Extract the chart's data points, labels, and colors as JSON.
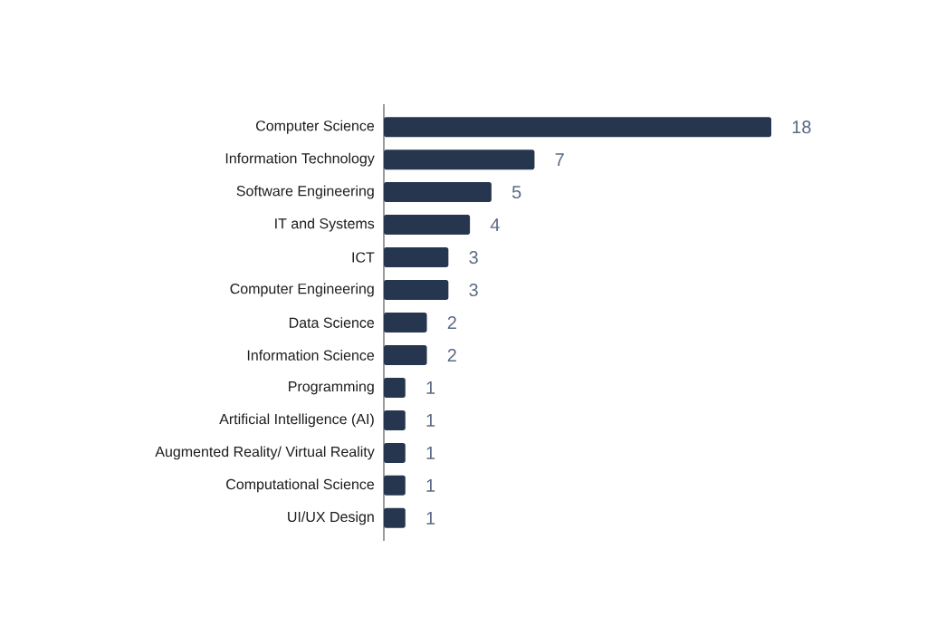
{
  "chart_data": {
    "type": "bar",
    "orientation": "horizontal",
    "categories": [
      "Computer Science",
      "Information Technology",
      "Software Engineering",
      "IT and Systems",
      "ICT",
      "Computer Engineering",
      "Data Science",
      "Information Science",
      "Programming",
      "Artificial Intelligence (AI)",
      "Augmented Reality/ Virtual Reality",
      "Computational Science",
      "UI/UX Design"
    ],
    "values": [
      18,
      7,
      5,
      4,
      3,
      3,
      2,
      2,
      1,
      1,
      1,
      1,
      1
    ],
    "color": "#27364f",
    "data_labels": true
  }
}
